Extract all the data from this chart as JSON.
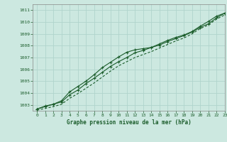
{
  "title": "Graphe pression niveau de la mer (hPa)",
  "bg_color": "#cce8e0",
  "grid_color": "#b0d4cc",
  "line_color": "#1a5c2a",
  "xlim": [
    -0.5,
    23
  ],
  "ylim": [
    1002.5,
    1011.5
  ],
  "xticks": [
    0,
    1,
    2,
    3,
    4,
    5,
    6,
    7,
    8,
    9,
    10,
    11,
    12,
    13,
    14,
    15,
    16,
    17,
    18,
    19,
    20,
    21,
    22,
    23
  ],
  "yticks": [
    1003,
    1004,
    1005,
    1006,
    1007,
    1008,
    1009,
    1010,
    1011
  ],
  "line1_x": [
    0,
    1,
    2,
    3,
    4,
    5,
    6,
    7,
    8,
    9,
    10,
    11,
    12,
    13,
    14,
    15,
    16,
    17,
    18,
    19,
    20,
    21,
    22,
    23
  ],
  "line1_y": [
    1002.65,
    1002.85,
    1003.05,
    1003.35,
    1004.1,
    1004.55,
    1005.0,
    1005.55,
    1006.15,
    1006.6,
    1007.05,
    1007.45,
    1007.65,
    1007.75,
    1007.85,
    1008.15,
    1008.45,
    1008.7,
    1008.9,
    1009.2,
    1009.65,
    1010.05,
    1010.5,
    1010.75
  ],
  "line2_x": [
    0,
    1,
    2,
    3,
    4,
    5,
    6,
    7,
    8,
    9,
    10,
    11,
    12,
    13,
    14,
    15,
    16,
    17,
    18,
    19,
    20,
    21,
    22,
    23
  ],
  "line2_y": [
    1002.65,
    1002.9,
    1003.05,
    1003.25,
    1003.85,
    1004.25,
    1004.8,
    1005.25,
    1005.75,
    1006.25,
    1006.65,
    1007.0,
    1007.4,
    1007.6,
    1007.85,
    1008.05,
    1008.35,
    1008.6,
    1008.85,
    1009.15,
    1009.55,
    1009.85,
    1010.35,
    1010.75
  ],
  "line3_x": [
    0,
    1,
    2,
    3,
    4,
    5,
    6,
    7,
    8,
    9,
    10,
    11,
    12,
    13,
    14,
    15,
    16,
    17,
    18,
    19,
    20,
    21,
    22,
    23
  ],
  "line3_y": [
    1002.55,
    1002.7,
    1002.85,
    1003.05,
    1003.55,
    1003.95,
    1004.4,
    1004.85,
    1005.35,
    1005.85,
    1006.3,
    1006.65,
    1007.0,
    1007.25,
    1007.5,
    1007.8,
    1008.1,
    1008.4,
    1008.65,
    1009.0,
    1009.45,
    1009.75,
    1010.25,
    1010.6
  ]
}
